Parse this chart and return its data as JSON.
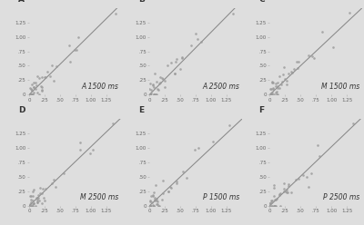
{
  "panels": [
    "A",
    "B",
    "C",
    "D",
    "E",
    "F"
  ],
  "labels": [
    "A 1500 ms",
    "A 2500 ms",
    "M 1500 ms",
    "M 2500 ms",
    "P 1500 ms",
    "P 2500 ms"
  ],
  "background_color": "#dedede",
  "dot_color": "#999999",
  "line_color": "#888888",
  "dot_size": 3.5,
  "panel_label_color": "#333333",
  "xlim": [
    0,
    1.5
  ],
  "ylim": [
    0,
    1.5
  ],
  "xticks": [
    0.0,
    0.25,
    0.5,
    0.75,
    1.0,
    1.25
  ],
  "yticks": [
    0.0,
    0.25,
    0.5,
    0.75,
    1.0,
    1.25
  ],
  "xtick_labels": [
    "0",
    ".25",
    ".50",
    ".75",
    "1.00",
    "1.25"
  ],
  "ytick_labels": [
    "0",
    ".25",
    ".50",
    ".75",
    "1.00",
    "1.25"
  ],
  "tick_label_fontsize": 4.0,
  "panel_fontsize": 6.5,
  "label_fontsize": 5.5,
  "seeds": [
    42,
    43,
    44,
    45,
    46,
    47
  ],
  "n_points": [
    40,
    38,
    42,
    40,
    38,
    40
  ],
  "slopes": [
    1.05,
    1.08,
    1.0,
    1.02,
    1.0,
    1.02
  ],
  "intercepts": [
    0.0,
    0.0,
    0.0,
    0.0,
    0.0,
    0.0
  ]
}
